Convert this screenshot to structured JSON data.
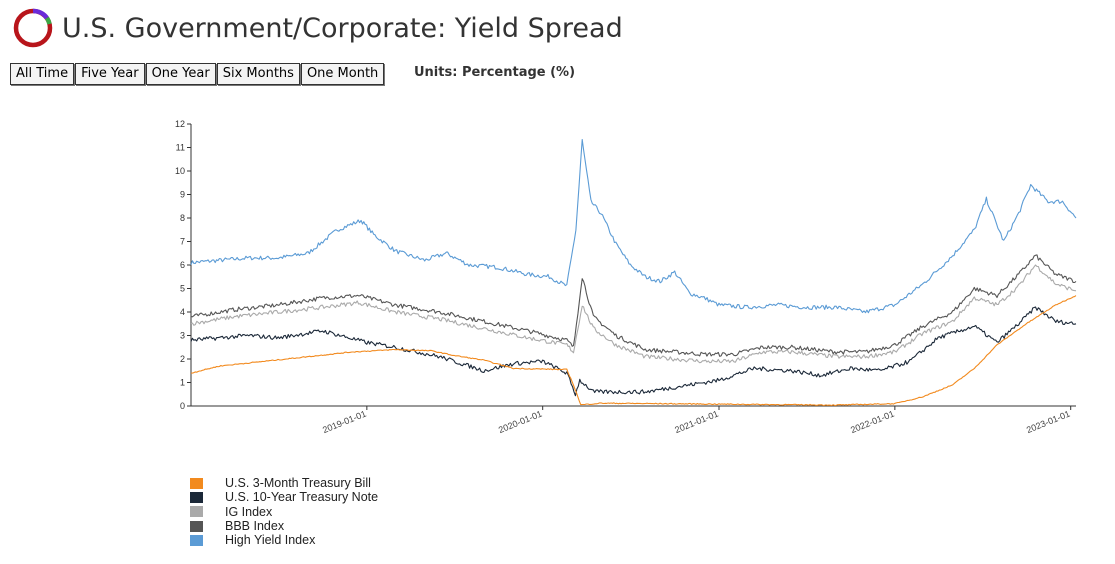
{
  "page": {
    "title": "U.S. Government/Corporate: Yield Spread",
    "units_label": "Units: Percentage (%)",
    "range_buttons": [
      "All Time",
      "Five Year",
      "One Year",
      "Six Months",
      "One Month"
    ]
  },
  "colors": {
    "logo_ring": "#b8151b",
    "logo_accent_purple": "#6a2bd8",
    "logo_accent_green": "#3aa846"
  },
  "chart_data": {
    "type": "line",
    "title": "",
    "xlabel": "",
    "ylabel": "",
    "ylim": [
      0,
      12
    ],
    "xlim": [
      "2018-01-01",
      "2023-01-12"
    ],
    "y_ticks": [
      "0",
      "1",
      "2",
      "3",
      "4",
      "5",
      "6",
      "7",
      "8",
      "9",
      "10",
      "11",
      "12"
    ],
    "x_ticks": [
      "2019-01-01",
      "2020-01-01",
      "2021-01-01",
      "2022-01-01",
      "2023-01-01"
    ],
    "legend_position": "bottom-left",
    "grid": false,
    "series": [
      {
        "name": "High Yield Index",
        "color": "#5b9bd5",
        "points": [
          [
            "2018-01-01",
            6.1
          ],
          [
            "2018-03-01",
            6.2
          ],
          [
            "2018-05-01",
            6.3
          ],
          [
            "2018-07-01",
            6.3
          ],
          [
            "2018-09-01",
            6.5
          ],
          [
            "2018-11-01",
            7.5
          ],
          [
            "2018-12-20",
            7.9
          ],
          [
            "2019-01-15",
            7.3
          ],
          [
            "2019-03-01",
            6.6
          ],
          [
            "2019-05-01",
            6.2
          ],
          [
            "2019-06-15",
            6.5
          ],
          [
            "2019-08-01",
            6.0
          ],
          [
            "2019-10-01",
            5.9
          ],
          [
            "2019-12-01",
            5.6
          ],
          [
            "2020-01-15",
            5.5
          ],
          [
            "2020-02-20",
            5.1
          ],
          [
            "2020-03-10",
            7.5
          ],
          [
            "2020-03-23",
            11.3
          ],
          [
            "2020-04-10",
            8.7
          ],
          [
            "2020-05-01",
            8.2
          ],
          [
            "2020-06-01",
            6.9
          ],
          [
            "2020-07-01",
            6.0
          ],
          [
            "2020-08-01",
            5.5
          ],
          [
            "2020-09-01",
            5.3
          ],
          [
            "2020-10-01",
            5.7
          ],
          [
            "2020-11-01",
            4.8
          ],
          [
            "2020-12-01",
            4.6
          ],
          [
            "2021-01-01",
            4.3
          ],
          [
            "2021-03-01",
            4.2
          ],
          [
            "2021-05-01",
            4.3
          ],
          [
            "2021-07-01",
            4.2
          ],
          [
            "2021-09-01",
            4.2
          ],
          [
            "2021-11-01",
            4.0
          ],
          [
            "2022-01-01",
            4.3
          ],
          [
            "2022-03-01",
            5.2
          ],
          [
            "2022-05-01",
            6.4
          ],
          [
            "2022-06-15",
            7.5
          ],
          [
            "2022-07-10",
            8.8
          ],
          [
            "2022-08-15",
            7.0
          ],
          [
            "2022-09-15",
            8.2
          ],
          [
            "2022-10-10",
            9.4
          ],
          [
            "2022-11-15",
            8.7
          ],
          [
            "2022-12-15",
            8.7
          ],
          [
            "2023-01-12",
            8.0
          ]
        ]
      },
      {
        "name": "BBB Index",
        "color": "#555555",
        "points": [
          [
            "2018-01-01",
            3.8
          ],
          [
            "2018-04-01",
            4.1
          ],
          [
            "2018-07-01",
            4.3
          ],
          [
            "2018-10-01",
            4.6
          ],
          [
            "2018-12-15",
            4.7
          ],
          [
            "2019-03-01",
            4.3
          ],
          [
            "2019-06-01",
            4.0
          ],
          [
            "2019-09-01",
            3.6
          ],
          [
            "2019-12-01",
            3.2
          ],
          [
            "2020-02-20",
            2.8
          ],
          [
            "2020-03-05",
            2.5
          ],
          [
            "2020-03-23",
            5.5
          ],
          [
            "2020-04-15",
            3.8
          ],
          [
            "2020-06-01",
            3.0
          ],
          [
            "2020-08-01",
            2.4
          ],
          [
            "2020-10-01",
            2.3
          ],
          [
            "2020-12-01",
            2.2
          ],
          [
            "2021-02-01",
            2.2
          ],
          [
            "2021-04-01",
            2.5
          ],
          [
            "2021-06-01",
            2.5
          ],
          [
            "2021-09-01",
            2.3
          ],
          [
            "2021-11-01",
            2.3
          ],
          [
            "2022-01-01",
            2.6
          ],
          [
            "2022-03-01",
            3.4
          ],
          [
            "2022-05-01",
            4.0
          ],
          [
            "2022-06-15",
            5.0
          ],
          [
            "2022-08-01",
            4.7
          ],
          [
            "2022-09-15",
            5.6
          ],
          [
            "2022-10-20",
            6.4
          ],
          [
            "2022-12-01",
            5.6
          ],
          [
            "2023-01-12",
            5.3
          ]
        ]
      },
      {
        "name": "IG Index",
        "color": "#aaaaaa",
        "points": [
          [
            "2018-01-01",
            3.5
          ],
          [
            "2018-04-01",
            3.8
          ],
          [
            "2018-07-01",
            4.0
          ],
          [
            "2018-10-01",
            4.2
          ],
          [
            "2018-12-15",
            4.4
          ],
          [
            "2019-03-01",
            4.0
          ],
          [
            "2019-06-01",
            3.7
          ],
          [
            "2019-09-01",
            3.3
          ],
          [
            "2019-12-01",
            2.9
          ],
          [
            "2020-02-20",
            2.6
          ],
          [
            "2020-03-05",
            2.3
          ],
          [
            "2020-03-23",
            4.3
          ],
          [
            "2020-04-15",
            3.3
          ],
          [
            "2020-06-01",
            2.6
          ],
          [
            "2020-08-01",
            2.1
          ],
          [
            "2020-10-01",
            2.0
          ],
          [
            "2020-12-01",
            1.9
          ],
          [
            "2021-02-01",
            1.9
          ],
          [
            "2021-04-01",
            2.3
          ],
          [
            "2021-06-01",
            2.3
          ],
          [
            "2021-09-01",
            2.1
          ],
          [
            "2021-11-01",
            2.1
          ],
          [
            "2022-01-01",
            2.3
          ],
          [
            "2022-03-01",
            3.1
          ],
          [
            "2022-05-01",
            3.6
          ],
          [
            "2022-06-15",
            4.6
          ],
          [
            "2022-08-01",
            4.3
          ],
          [
            "2022-09-15",
            5.1
          ],
          [
            "2022-10-20",
            6.0
          ],
          [
            "2022-12-01",
            5.2
          ],
          [
            "2023-01-12",
            4.9
          ]
        ]
      },
      {
        "name": "U.S. 10-Year Treasury Note",
        "color": "#1b2838",
        "points": [
          [
            "2018-01-01",
            2.8
          ],
          [
            "2018-03-01",
            2.9
          ],
          [
            "2018-05-01",
            3.0
          ],
          [
            "2018-07-01",
            2.9
          ],
          [
            "2018-10-01",
            3.2
          ],
          [
            "2019-01-01",
            2.7
          ],
          [
            "2019-03-01",
            2.5
          ],
          [
            "2019-06-01",
            2.1
          ],
          [
            "2019-09-01",
            1.5
          ],
          [
            "2019-11-01",
            1.8
          ],
          [
            "2020-01-01",
            1.9
          ],
          [
            "2020-02-20",
            1.4
          ],
          [
            "2020-03-09",
            0.5
          ],
          [
            "2020-03-18",
            1.1
          ],
          [
            "2020-04-15",
            0.6
          ],
          [
            "2020-08-01",
            0.6
          ],
          [
            "2020-11-01",
            0.9
          ],
          [
            "2021-01-01",
            1.1
          ],
          [
            "2021-03-15",
            1.6
          ],
          [
            "2021-06-01",
            1.5
          ],
          [
            "2021-08-01",
            1.3
          ],
          [
            "2021-10-01",
            1.6
          ],
          [
            "2021-12-01",
            1.5
          ],
          [
            "2022-02-01",
            1.9
          ],
          [
            "2022-04-01",
            2.9
          ],
          [
            "2022-06-15",
            3.4
          ],
          [
            "2022-08-01",
            2.7
          ],
          [
            "2022-09-15",
            3.5
          ],
          [
            "2022-10-20",
            4.2
          ],
          [
            "2022-12-01",
            3.6
          ],
          [
            "2023-01-12",
            3.5
          ]
        ]
      },
      {
        "name": "U.S. 3-Month Treasury Bill",
        "color": "#f28a1e",
        "points": [
          [
            "2018-01-01",
            1.4
          ],
          [
            "2018-03-01",
            1.7
          ],
          [
            "2018-06-01",
            1.9
          ],
          [
            "2018-09-01",
            2.1
          ],
          [
            "2018-12-01",
            2.3
          ],
          [
            "2019-03-01",
            2.4
          ],
          [
            "2019-05-15",
            2.35
          ],
          [
            "2019-07-01",
            2.15
          ],
          [
            "2019-09-01",
            1.95
          ],
          [
            "2019-11-01",
            1.6
          ],
          [
            "2020-02-20",
            1.55
          ],
          [
            "2020-03-05",
            0.9
          ],
          [
            "2020-03-20",
            0.05
          ],
          [
            "2020-05-01",
            0.12
          ],
          [
            "2021-01-01",
            0.08
          ],
          [
            "2021-09-01",
            0.04
          ],
          [
            "2022-01-01",
            0.1
          ],
          [
            "2022-03-01",
            0.4
          ],
          [
            "2022-05-01",
            0.9
          ],
          [
            "2022-06-15",
            1.6
          ],
          [
            "2022-08-01",
            2.6
          ],
          [
            "2022-10-01",
            3.5
          ],
          [
            "2022-12-01",
            4.3
          ],
          [
            "2023-01-12",
            4.7
          ]
        ]
      }
    ]
  },
  "legend_order": [
    "U.S. 3-Month Treasury Bill",
    "U.S. 10-Year Treasury Note",
    "IG Index",
    "BBB Index",
    "High Yield Index"
  ]
}
